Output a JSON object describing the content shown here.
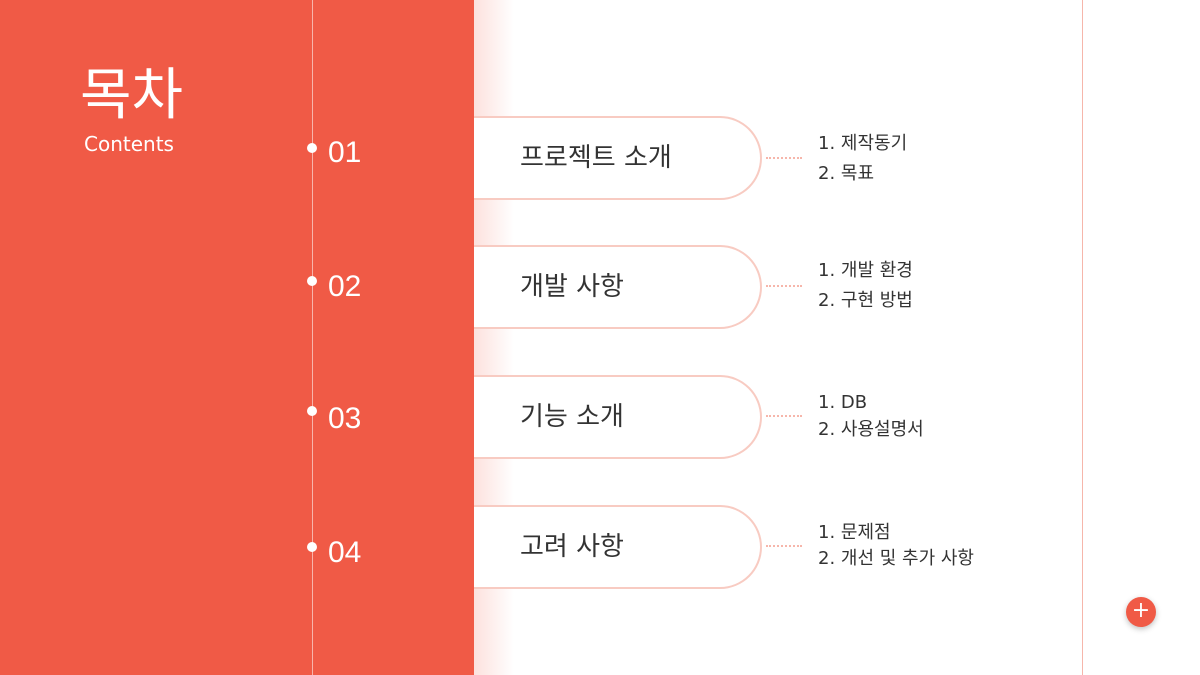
{
  "header": {
    "title": "목차",
    "subtitle": "Contents"
  },
  "sections": [
    {
      "number": "01",
      "label": "프로젝트 소개",
      "items": [
        "1. 제작동기",
        "2. 목표"
      ]
    },
    {
      "number": "02",
      "label": "개발 사항",
      "items": [
        "1. 개발 환경",
        "2. 구현 방법"
      ]
    },
    {
      "number": "03",
      "label": "기능 소개",
      "items": [
        "1. DB",
        "2. 사용설명서"
      ]
    },
    {
      "number": "04",
      "label": "고려 사항",
      "items": [
        "1. 문제점",
        "2. 개선 및 추가 사항"
      ]
    }
  ],
  "add_button": {
    "icon": "plus-icon",
    "glyph": "+"
  },
  "colors": {
    "accent": "#f05a46",
    "pill_border": "#f8cbc2",
    "text": "#333333"
  }
}
